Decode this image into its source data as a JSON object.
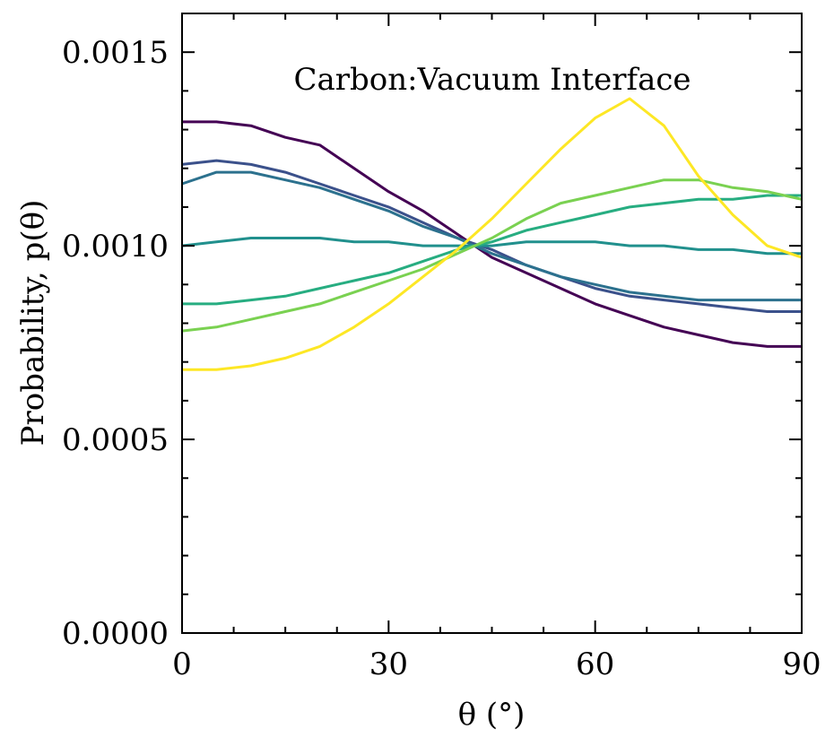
{
  "chart_data": {
    "type": "line",
    "title": "Carbon:Vacuum Interface",
    "xlabel": "θ (°)",
    "ylabel": "Probability, p(θ)",
    "xlim": [
      0,
      90
    ],
    "ylim": [
      0,
      0.0016
    ],
    "xticks": [
      "0",
      "30",
      "60",
      "90"
    ],
    "yticks": [
      "0.0000",
      "0.0005",
      "0.0010",
      "0.0015"
    ],
    "grid": false,
    "series": [
      {
        "color": "#440154",
        "x": [
          0,
          5,
          10,
          15,
          20,
          25,
          30,
          35,
          40,
          45,
          50,
          55,
          60,
          65,
          70,
          75,
          80,
          85,
          90
        ],
        "y": [
          0.00132,
          0.00132,
          0.00131,
          0.00128,
          0.00126,
          0.0012,
          0.00114,
          0.00109,
          0.00103,
          0.00097,
          0.00093,
          0.00089,
          0.00085,
          0.00082,
          0.00079,
          0.00077,
          0.00075,
          0.00074,
          0.00074
        ]
      },
      {
        "color": "#3b518b",
        "x": [
          0,
          5,
          10,
          15,
          20,
          25,
          30,
          35,
          40,
          45,
          50,
          55,
          60,
          65,
          70,
          75,
          80,
          85,
          90
        ],
        "y": [
          0.00121,
          0.00122,
          0.00121,
          0.00119,
          0.00116,
          0.00113,
          0.0011,
          0.00106,
          0.00102,
          0.00099,
          0.00095,
          0.00092,
          0.00089,
          0.00087,
          0.00086,
          0.00085,
          0.00084,
          0.00083,
          0.00083
        ]
      },
      {
        "color": "#2c718e",
        "x": [
          0,
          5,
          10,
          15,
          20,
          25,
          30,
          35,
          40,
          45,
          50,
          55,
          60,
          65,
          70,
          75,
          80,
          85,
          90
        ],
        "y": [
          0.00116,
          0.00119,
          0.00119,
          0.00117,
          0.00115,
          0.00112,
          0.00109,
          0.00105,
          0.00102,
          0.00098,
          0.00095,
          0.00092,
          0.0009,
          0.00088,
          0.00087,
          0.00086,
          0.00086,
          0.00086,
          0.00086
        ]
      },
      {
        "color": "#21908d",
        "x": [
          0,
          5,
          10,
          15,
          20,
          25,
          30,
          35,
          40,
          45,
          50,
          55,
          60,
          65,
          70,
          75,
          80,
          85,
          90
        ],
        "y": [
          0.001,
          0.00101,
          0.00102,
          0.00102,
          0.00102,
          0.00101,
          0.00101,
          0.001,
          0.001,
          0.001,
          0.00101,
          0.00101,
          0.00101,
          0.001,
          0.001,
          0.00099,
          0.00099,
          0.00098,
          0.00098
        ]
      },
      {
        "color": "#27ad81",
        "x": [
          0,
          5,
          10,
          15,
          20,
          25,
          30,
          35,
          40,
          45,
          50,
          55,
          60,
          65,
          70,
          75,
          80,
          85,
          90
        ],
        "y": [
          0.00085,
          0.00085,
          0.00086,
          0.00087,
          0.00089,
          0.00091,
          0.00093,
          0.00096,
          0.00099,
          0.00101,
          0.00104,
          0.00106,
          0.00108,
          0.0011,
          0.00111,
          0.00112,
          0.00112,
          0.00113,
          0.00113
        ]
      },
      {
        "color": "#7ad151",
        "x": [
          0,
          5,
          10,
          15,
          20,
          25,
          30,
          35,
          40,
          45,
          50,
          55,
          60,
          65,
          70,
          75,
          80,
          85,
          90
        ],
        "y": [
          0.00078,
          0.00079,
          0.00081,
          0.00083,
          0.00085,
          0.00088,
          0.00091,
          0.00094,
          0.00098,
          0.00102,
          0.00107,
          0.00111,
          0.00113,
          0.00115,
          0.00117,
          0.00117,
          0.00115,
          0.00114,
          0.00112
        ]
      },
      {
        "color": "#fde725",
        "x": [
          0,
          5,
          10,
          15,
          20,
          25,
          30,
          35,
          40,
          45,
          50,
          55,
          60,
          65,
          70,
          75,
          80,
          85,
          90
        ],
        "y": [
          0.00068,
          0.00068,
          0.00069,
          0.00071,
          0.00074,
          0.00079,
          0.00085,
          0.00092,
          0.00099,
          0.00107,
          0.00116,
          0.00125,
          0.00133,
          0.00138,
          0.00131,
          0.00118,
          0.00108,
          0.001,
          0.00097
        ]
      }
    ]
  }
}
